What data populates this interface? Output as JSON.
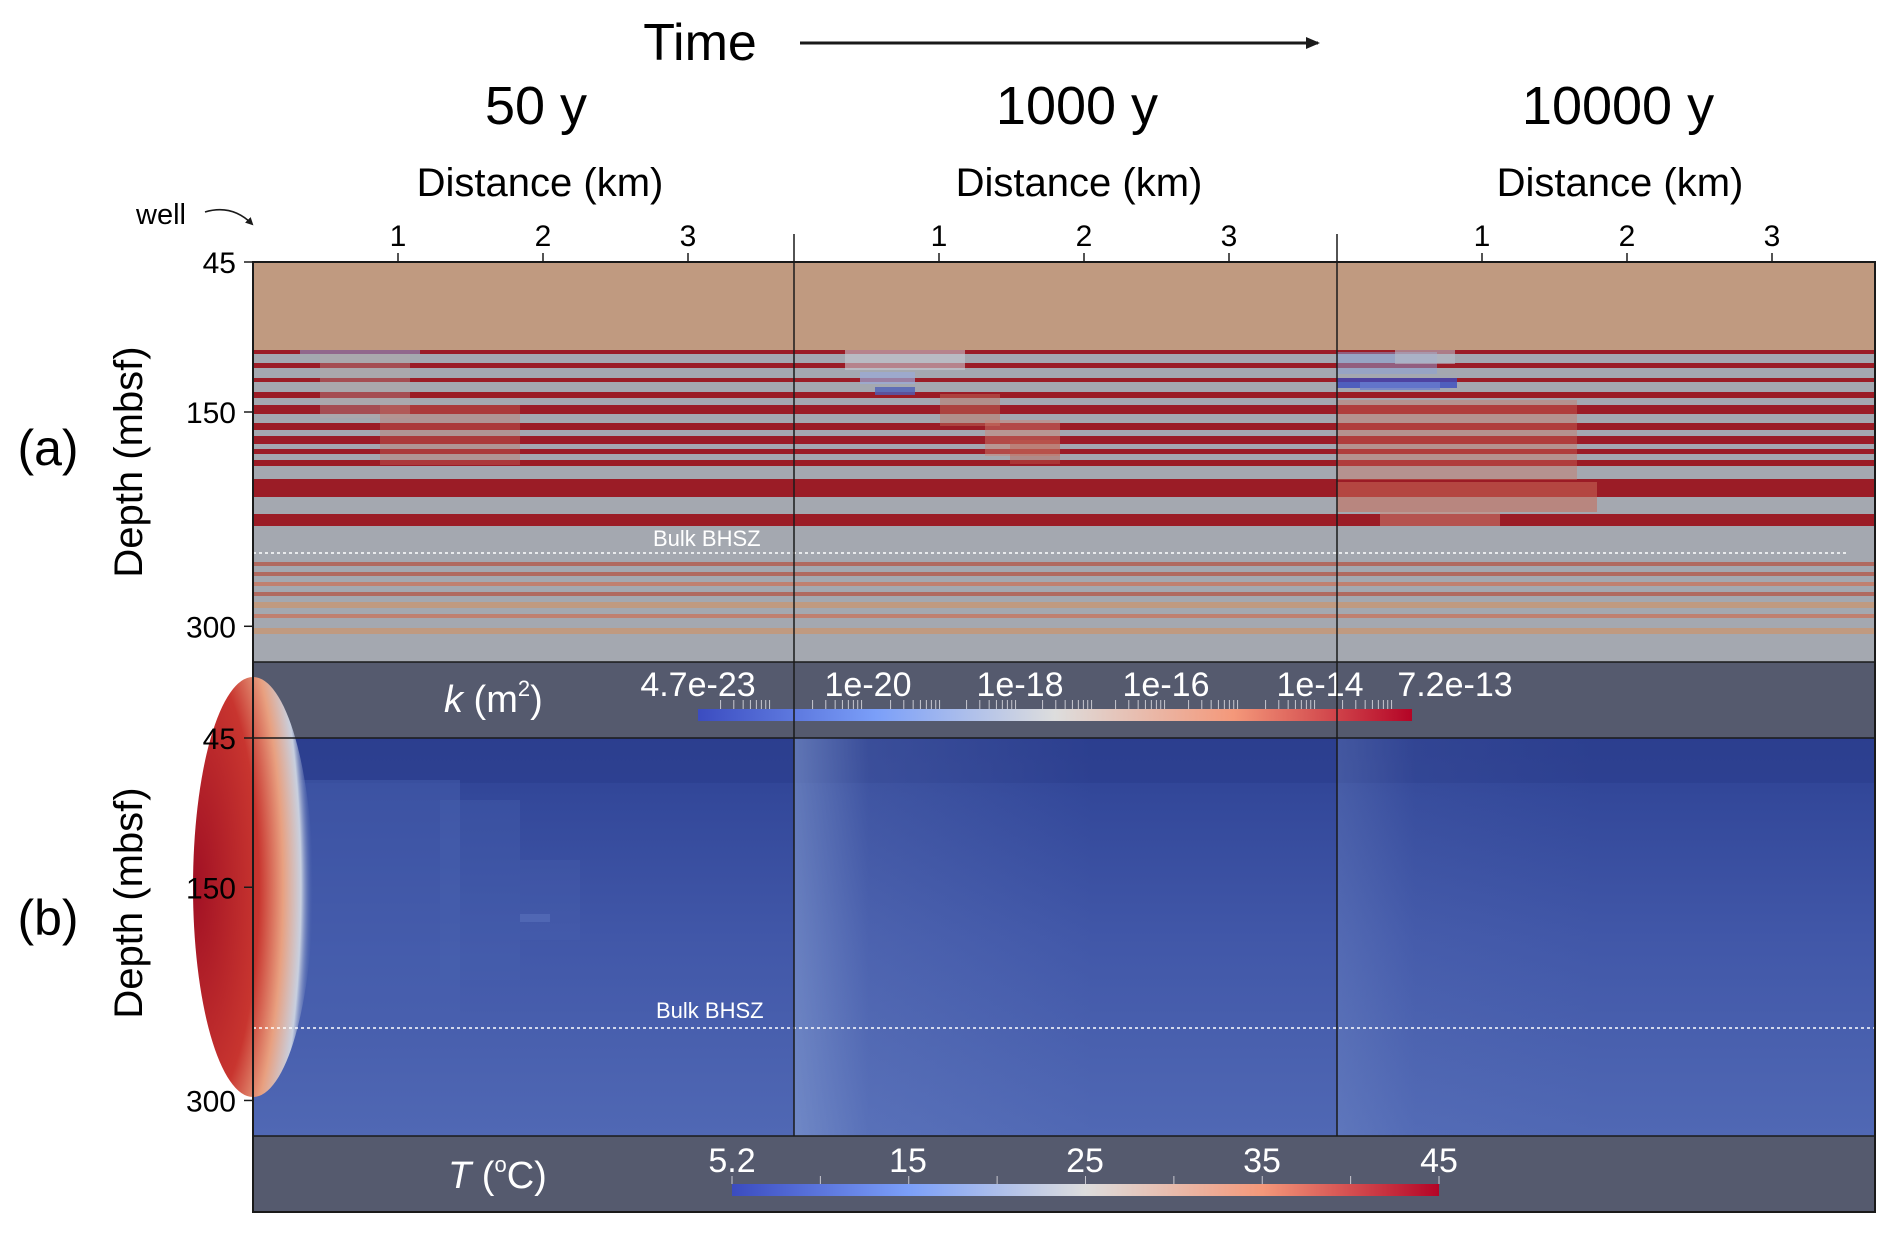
{
  "time_header": {
    "label": "Time"
  },
  "snapshots": [
    {
      "label": "50 y"
    },
    {
      "label": "1000 y"
    },
    {
      "label": "10000 y"
    }
  ],
  "distance_axis": {
    "label": "Distance (km)",
    "ticks": [
      "1",
      "2",
      "3"
    ],
    "range_km": [
      0,
      3.8
    ]
  },
  "well_label": "well",
  "depth_axis": {
    "label": "Depth (mbsf)",
    "ticks": [
      "45",
      "150",
      "300"
    ],
    "tick_values": [
      45,
      150,
      300
    ],
    "range_mbsf": [
      45,
      325
    ]
  },
  "panels": [
    {
      "id": "a",
      "label": "(a)",
      "variable": "permeability"
    },
    {
      "id": "b",
      "label": "(b)",
      "variable": "temperature"
    }
  ],
  "bhsz": {
    "label": "Bulk BHSZ",
    "depth_mbsf": 250
  },
  "colorbars": {
    "k": {
      "symbol": "k",
      "unit_open": " (m",
      "unit_sup": "2",
      "unit_close": ")",
      "labels": [
        "4.7e-23",
        "1e-20",
        "1e-18",
        "1e-16",
        "1e-14",
        "7.2e-13"
      ],
      "log10_range": [
        -22.33,
        -12.14
      ]
    },
    "T": {
      "symbol": "T",
      "unit_open": " (",
      "unit_sup": "o",
      "unit_close": "C)",
      "labels": [
        "5.2",
        "15",
        "25",
        "35",
        "45"
      ],
      "range_c": [
        5.2,
        45
      ]
    }
  },
  "colors": {
    "cool": "#3b4cc0",
    "neutral": "#dddddd",
    "warm": "#b40426",
    "seafloor_layer": "#c09a80",
    "red_layer": "#9b1c26",
    "grey_layer": "#a4a8b0",
    "colorbar_panel": "#555a6e",
    "temp_deep_blue": "#2f4496",
    "temp_mid_blue": "#4a62b0"
  }
}
